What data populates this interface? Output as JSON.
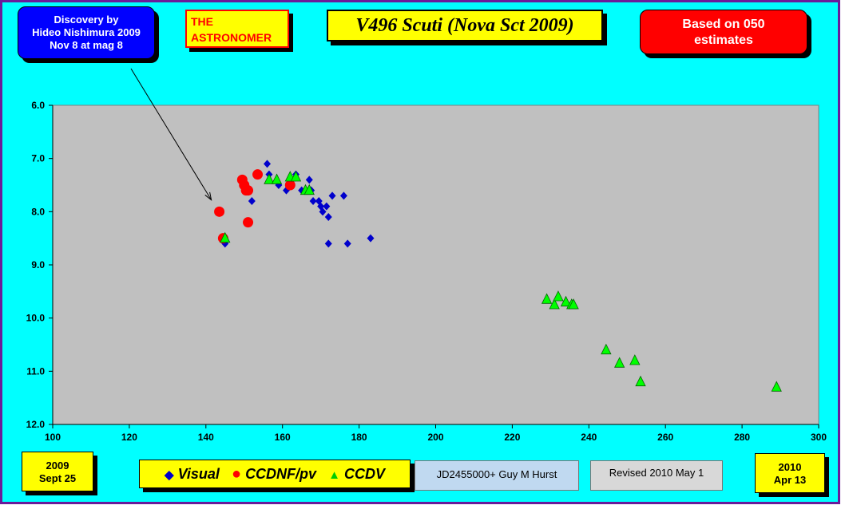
{
  "discovery_note": {
    "lines": [
      "Discovery by",
      "Hideo Nishimura 2009",
      "Nov 8 at mag 8"
    ]
  },
  "publisher": {
    "lines": [
      "THE",
      "ASTRONOMER"
    ]
  },
  "estimates_note": {
    "lines": [
      "Based on 050",
      "estimates"
    ]
  },
  "start_label": {
    "lines": [
      "2009",
      "Sept 25"
    ]
  },
  "end_label": {
    "lines": [
      "2010",
      "Apr 13"
    ]
  },
  "credit": "JD2455000+ Guy M Hurst",
  "revised": "Revised 2010 May 1",
  "colors": {
    "background": "#00ffff",
    "plot_area": "#c0c0c0",
    "visual": "#0000cc",
    "ccdnf": "#ff0000",
    "ccdv": "#00ff00"
  },
  "chart_data": {
    "type": "scatter",
    "title": "V496 Scuti (Nova Sct 2009)",
    "xlabel": "",
    "ylabel": "",
    "xlim": [
      100,
      300
    ],
    "ylim": [
      6.0,
      12.0
    ],
    "y_inverted": true,
    "x_ticks": [
      "100",
      "120",
      "140",
      "160",
      "180",
      "200",
      "220",
      "240",
      "260",
      "280",
      "300"
    ],
    "y_ticks": [
      "6.0",
      "7.0",
      "8.0",
      "9.0",
      "10.0",
      "11.0",
      "12.0"
    ],
    "grid": false,
    "legend_position": "bottom",
    "annotation": {
      "text_ref": "discovery_note",
      "point": [
        143.5,
        7.9
      ]
    },
    "series": [
      {
        "name": "Visual",
        "marker": "diamond",
        "points": [
          [
            145,
            8.6
          ],
          [
            152,
            7.8
          ],
          [
            156,
            7.1
          ],
          [
            156.5,
            7.3
          ],
          [
            159,
            7.5
          ],
          [
            161,
            7.6
          ],
          [
            163.5,
            7.3
          ],
          [
            165,
            7.6
          ],
          [
            167,
            7.4
          ],
          [
            167.5,
            7.6
          ],
          [
            168,
            7.8
          ],
          [
            169.5,
            7.8
          ],
          [
            170,
            7.9
          ],
          [
            170.5,
            8.0
          ],
          [
            171.5,
            7.9
          ],
          [
            172,
            8.1
          ],
          [
            172,
            8.6
          ],
          [
            173,
            7.7
          ],
          [
            176,
            7.7
          ],
          [
            177,
            8.6
          ],
          [
            183,
            8.5
          ]
        ]
      },
      {
        "name": "CCDNF/pv",
        "marker": "circle",
        "points": [
          [
            143.5,
            8.0
          ],
          [
            144.5,
            8.5
          ],
          [
            149.5,
            7.4
          ],
          [
            150,
            7.5
          ],
          [
            150.5,
            7.6
          ],
          [
            151,
            7.6
          ],
          [
            151,
            8.2
          ],
          [
            153.5,
            7.3
          ],
          [
            162,
            7.5
          ]
        ]
      },
      {
        "name": "CCDV",
        "marker": "triangle",
        "points": [
          [
            145,
            8.5
          ],
          [
            156.5,
            7.4
          ],
          [
            158.5,
            7.4
          ],
          [
            162,
            7.35
          ],
          [
            163.5,
            7.35
          ],
          [
            166,
            7.6
          ],
          [
            167,
            7.6
          ],
          [
            229,
            9.65
          ],
          [
            231,
            9.75
          ],
          [
            232,
            9.6
          ],
          [
            234,
            9.7
          ],
          [
            235.5,
            9.75
          ],
          [
            236,
            9.75
          ],
          [
            244.5,
            10.6
          ],
          [
            248,
            10.85
          ],
          [
            252,
            10.8
          ],
          [
            253.5,
            11.2
          ],
          [
            289,
            11.3
          ]
        ]
      }
    ]
  }
}
